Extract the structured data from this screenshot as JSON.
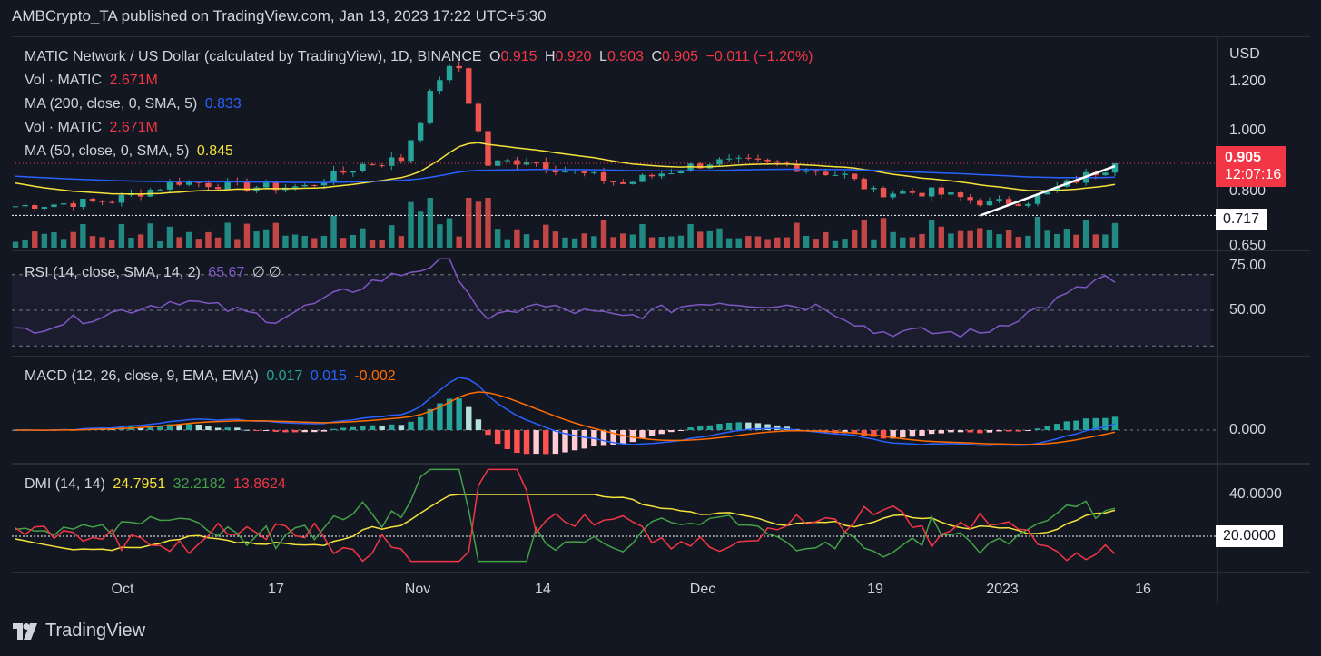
{
  "header": {
    "published": "AMBCrypto_TA published on TradingView.com, Jan 13, 2023 17:22 UTC+5:30"
  },
  "main_legend": {
    "symbol": "MATIC Network / US Dollar (calculated by TradingView), 1D, BINANCE",
    "o_label": "O",
    "o_value": "0.915",
    "h_label": "H",
    "h_value": "0.920",
    "l_label": "L",
    "l_value": "0.903",
    "c_label": "C",
    "c_value": "0.905",
    "change": "−0.011 (−1.20%)",
    "vol1_label": "Vol · MATIC",
    "vol1_value": "2.671M",
    "ma200_label": "MA (200, close, 0, SMA, 5)",
    "ma200_value": "0.833",
    "vol2_label": "Vol · MATIC",
    "vol2_value": "2.671M",
    "ma50_label": "MA (50, close, 0, SMA, 5)",
    "ma50_value": "0.845"
  },
  "rsi_legend": {
    "label": "RSI (14, close, SMA, 14, 2)",
    "value": "65.67",
    "n1": "∅",
    "n2": "∅"
  },
  "macd_legend": {
    "label": "MACD (12, 26, close, 9, EMA, EMA)",
    "hist": "0.017",
    "macd": "0.015",
    "signal": "-0.002"
  },
  "dmi_legend": {
    "label": "DMI (14, 14)",
    "adx": "24.7951",
    "plus": "32.2182",
    "minus": "13.8624"
  },
  "price_scale": {
    "currency": "USD",
    "ticks": [
      "1.200",
      "1.000",
      "0.800",
      "0.650"
    ],
    "last_price": "0.905",
    "countdown": "12:07:16",
    "level_tag": "0.717"
  },
  "rsi_scale": {
    "ticks": [
      "75.00",
      "50.00"
    ]
  },
  "macd_scale": {
    "ticks": [
      "0.000"
    ]
  },
  "dmi_scale": {
    "ticks": [
      "40.0000"
    ],
    "level_tag": "20.0000"
  },
  "x_axis": {
    "labels": [
      "Oct",
      "17",
      "Nov",
      "14",
      "Dec",
      "19",
      "2023",
      "16"
    ]
  },
  "branding": {
    "name": "TradingView"
  },
  "colors": {
    "up": "#26a69a",
    "down": "#ef5350",
    "ma50": "#f5e33b",
    "ma200": "#2962ff",
    "rsi": "#7e57c2",
    "macd": "#2962ff",
    "signal": "#ff6d00",
    "dmi_adx": "#f5e33b",
    "dmi_plus": "#43a047",
    "dmi_minus": "#f23645"
  },
  "chart_data": [
    {
      "type": "candlestick",
      "title": "MATIC Network / US Dollar (calculated by TradingView), 1D, BINANCE",
      "x_range": [
        "2022-09-21",
        "2023-01-13"
      ],
      "ylim": [
        0.65,
        1.3
      ],
      "y_ticks": [
        0.65,
        0.8,
        1.0,
        1.2
      ],
      "x_labels": [
        "Oct",
        "17",
        "Nov",
        "14",
        "Dec",
        "19",
        "2023",
        "16"
      ],
      "close_path": [
        [
          "2022-09-21",
          0.75
        ],
        [
          "2022-10-01",
          0.77
        ],
        [
          "2022-10-08",
          0.84
        ],
        [
          "2022-10-15",
          0.82
        ],
        [
          "2022-10-21",
          0.82
        ],
        [
          "2022-10-27",
          0.9
        ],
        [
          "2022-10-31",
          0.92
        ],
        [
          "2022-11-04",
          1.22
        ],
        [
          "2022-11-06",
          1.25
        ],
        [
          "2022-11-09",
          0.9
        ],
        [
          "2022-11-13",
          0.92
        ],
        [
          "2022-11-17",
          0.88
        ],
        [
          "2022-11-23",
          0.83
        ],
        [
          "2022-11-27",
          0.87
        ],
        [
          "2022-12-02",
          0.91
        ],
        [
          "2022-12-10",
          0.9
        ],
        [
          "2022-12-16",
          0.86
        ],
        [
          "2022-12-19",
          0.8
        ],
        [
          "2022-12-25",
          0.8
        ],
        [
          "2022-12-31",
          0.76
        ],
        [
          "2023-01-04",
          0.77
        ],
        [
          "2023-01-08",
          0.83
        ],
        [
          "2023-01-13",
          0.905
        ]
      ],
      "ma50": {
        "name": "MA (50, close, 0, SMA, 5)",
        "last": 0.845
      },
      "ma200": {
        "name": "MA (200, close, 0, SMA, 5)",
        "last": 0.833
      },
      "volume": {
        "name": "Vol · MATIC",
        "last": "2.671M"
      },
      "horizontal_level": 0.717
    },
    {
      "type": "line",
      "title": "RSI (14, close, SMA, 14, 2)",
      "ylim": [
        30,
        80
      ],
      "y_ticks": [
        50,
        75
      ],
      "bands": [
        30,
        50,
        70
      ],
      "series": [
        {
          "name": "RSI",
          "points": [
            [
              "2022-09-21",
              38
            ],
            [
              "2022-10-08",
              56
            ],
            [
              "2022-10-18",
              45
            ],
            [
              "2022-10-28",
              66
            ],
            [
              "2022-11-05",
              78
            ],
            [
              "2022-11-09",
              43
            ],
            [
              "2022-11-13",
              53
            ],
            [
              "2022-11-23",
              46
            ],
            [
              "2022-12-02",
              55
            ],
            [
              "2022-12-14",
              52
            ],
            [
              "2022-12-19",
              38
            ],
            [
              "2022-12-30",
              37
            ],
            [
              "2023-01-06",
              53
            ],
            [
              "2023-01-12",
              69
            ],
            [
              "2023-01-13",
              65.67
            ]
          ]
        }
      ]
    },
    {
      "type": "line",
      "title": "MACD (12, 26, close, 9, EMA, EMA)",
      "series": [
        {
          "name": "MACD",
          "last": 0.015
        },
        {
          "name": "Signal",
          "last": -0.002
        },
        {
          "name": "Histogram",
          "last": 0.017
        }
      ],
      "y_ticks": [
        0.0
      ]
    },
    {
      "type": "line",
      "title": "DMI (14, 14)",
      "ylim": [
        5,
        55
      ],
      "y_ticks": [
        40
      ],
      "horizontal_level": 20,
      "series": [
        {
          "name": "ADX",
          "last": 24.7951
        },
        {
          "name": "+DI",
          "last": 32.2182
        },
        {
          "name": "-DI",
          "last": 13.8624
        }
      ]
    }
  ]
}
